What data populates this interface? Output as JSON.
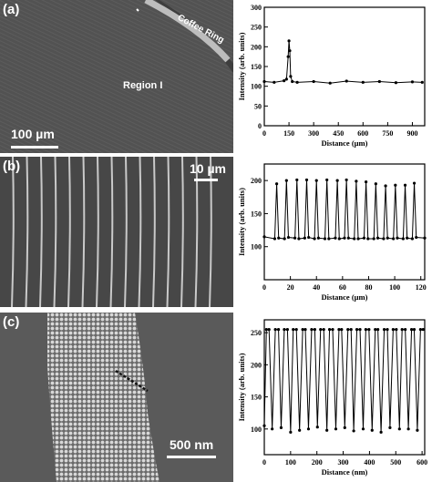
{
  "panels": [
    {
      "label": "(a)",
      "image": {
        "annotations": [
          "Coffee Ring",
          "Region I"
        ],
        "scale_bar": "100 µm"
      }
    },
    {
      "label": "(b)",
      "image": {
        "scale_bar": "10 µm"
      }
    },
    {
      "label": "(c)",
      "image": {
        "scale_bar": "500 nm"
      }
    }
  ],
  "chart_data": [
    {
      "type": "line",
      "panel": "(a)",
      "xlabel": "Distance (µm)",
      "ylabel": "Intensity (arb. units)",
      "xlim": [
        0,
        975
      ],
      "ylim": [
        0,
        300
      ],
      "xticks": [
        0,
        150,
        300,
        450,
        600,
        750,
        900
      ],
      "yticks": [
        0,
        50,
        100,
        150,
        200,
        250,
        300
      ],
      "series": [
        {
          "x": [
            0,
            60,
            120,
            135,
            145,
            150,
            155,
            160,
            170,
            200,
            300,
            400,
            500,
            600,
            700,
            800,
            900,
            960
          ],
          "values": [
            112,
            110,
            114,
            118,
            175,
            215,
            190,
            125,
            112,
            110,
            112,
            108,
            113,
            110,
            112,
            109,
            111,
            110
          ]
        }
      ]
    },
    {
      "type": "line",
      "panel": "(b)",
      "xlabel": "Distance (µm)",
      "ylabel": "Intensity (arb. units)",
      "xlim": [
        0,
        123
      ],
      "ylim": [
        50,
        225
      ],
      "xticks": [
        0,
        20,
        40,
        60,
        80,
        100,
        120
      ],
      "yticks": [
        100,
        150,
        200
      ],
      "series": [
        {
          "x": [
            0,
            8,
            9.5,
            11,
            15.5,
            17,
            18.5,
            23.5,
            25,
            26.5,
            31,
            32.5,
            34,
            38.5,
            40,
            41.5,
            46.5,
            48,
            49.5,
            54.5,
            56,
            57.5,
            61.5,
            63,
            64.5,
            69,
            70.5,
            72,
            76.5,
            78,
            79.5,
            84,
            85.5,
            87,
            91.5,
            93,
            94.5,
            99,
            100.5,
            102,
            106.5,
            108,
            109.5,
            113.5,
            115,
            116.5,
            123
          ],
          "values": [
            115,
            112,
            195,
            113,
            112,
            200,
            114,
            113,
            201,
            112,
            113,
            201,
            114,
            112,
            200,
            113,
            112,
            201,
            112,
            113,
            200,
            112,
            113,
            201,
            113,
            112,
            199,
            112,
            113,
            198,
            112,
            112,
            195,
            113,
            112,
            192,
            113,
            112,
            193,
            113,
            112,
            193,
            113,
            112,
            196,
            114,
            113
          ]
        }
      ]
    },
    {
      "type": "line",
      "panel": "(c)",
      "xlabel": "Distance (nm)",
      "ylabel": "Intensity (arb. units)",
      "xlim": [
        0,
        610
      ],
      "ylim": [
        60,
        270
      ],
      "xticks": [
        0,
        100,
        200,
        300,
        400,
        500,
        600
      ],
      "yticks": [
        100,
        150,
        200,
        250
      ],
      "series": [
        {
          "x": [
            0,
            8,
            18,
            30,
            42,
            54,
            64,
            76,
            88,
            100,
            110,
            122,
            134,
            146,
            156,
            168,
            180,
            192,
            202,
            214,
            226,
            238,
            248,
            260,
            272,
            284,
            294,
            306,
            318,
            330,
            340,
            352,
            364,
            376,
            386,
            398,
            410,
            422,
            432,
            444,
            456,
            468,
            478,
            490,
            502,
            514,
            524,
            536,
            548,
            560,
            570,
            582,
            594,
            604
          ],
          "values": [
            105,
            255,
            255,
            100,
            255,
            255,
            102,
            255,
            255,
            95,
            255,
            255,
            98,
            255,
            255,
            100,
            255,
            255,
            103,
            255,
            255,
            98,
            255,
            255,
            100,
            255,
            255,
            102,
            255,
            255,
            97,
            255,
            255,
            100,
            255,
            255,
            98,
            255,
            255,
            95,
            255,
            255,
            102,
            255,
            255,
            100,
            255,
            255,
            100,
            255,
            255,
            98,
            255,
            255
          ]
        }
      ]
    }
  ]
}
